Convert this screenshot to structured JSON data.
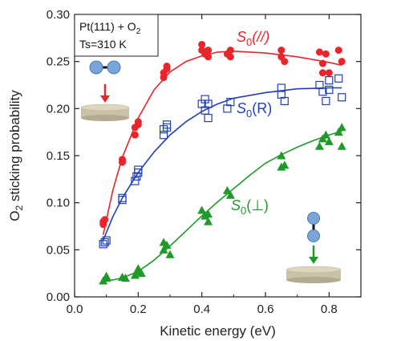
{
  "chart_data": {
    "type": "scatter",
    "xlabel": "Kinetic energy (eV)",
    "ylabel": {
      "base": "O",
      "sub": "2",
      "rest": " sticking probability"
    },
    "xlim": [
      0.0,
      0.9
    ],
    "ylim": [
      0.0,
      0.3
    ],
    "xticks": [
      "0.0",
      "0.2",
      "0.4",
      "0.6",
      "0.8"
    ],
    "xtick_values": [
      0.0,
      0.2,
      0.4,
      0.6,
      0.8
    ],
    "yticks": [
      "0.00",
      "0.05",
      "0.10",
      "0.15",
      "0.20",
      "0.25",
      "0.30"
    ],
    "ytick_values": [
      0.0,
      0.05,
      0.1,
      0.15,
      0.2,
      0.25,
      0.3
    ],
    "grid": false,
    "annotation": {
      "line1": {
        "base": "Pt(111) + O",
        "sub": "2"
      },
      "line2": "Ts=310 K"
    },
    "series": [
      {
        "label": {
          "S": "S",
          "sub": "0",
          "suffix": "(//)"
        },
        "color": "#e8252b",
        "marker": "circle",
        "points": [
          [
            0.09,
            0.077
          ],
          [
            0.09,
            0.08
          ],
          [
            0.095,
            0.082
          ],
          [
            0.15,
            0.143
          ],
          [
            0.15,
            0.146
          ],
          [
            0.19,
            0.172
          ],
          [
            0.19,
            0.18
          ],
          [
            0.2,
            0.183
          ],
          [
            0.2,
            0.186
          ],
          [
            0.28,
            0.233
          ],
          [
            0.28,
            0.238
          ],
          [
            0.29,
            0.242
          ],
          [
            0.29,
            0.245
          ],
          [
            0.4,
            0.262
          ],
          [
            0.4,
            0.268
          ],
          [
            0.41,
            0.258
          ],
          [
            0.42,
            0.255
          ],
          [
            0.42,
            0.262
          ],
          [
            0.48,
            0.258
          ],
          [
            0.49,
            0.262
          ],
          [
            0.49,
            0.255
          ],
          [
            0.65,
            0.262
          ],
          [
            0.65,
            0.255
          ],
          [
            0.66,
            0.25
          ],
          [
            0.77,
            0.26
          ],
          [
            0.78,
            0.248
          ],
          [
            0.78,
            0.238
          ],
          [
            0.79,
            0.258
          ],
          [
            0.8,
            0.238
          ],
          [
            0.83,
            0.262
          ],
          [
            0.84,
            0.25
          ]
        ],
        "fit": [
          [
            0.09,
            0.066
          ],
          [
            0.12,
            0.113
          ],
          [
            0.15,
            0.148
          ],
          [
            0.2,
            0.19
          ],
          [
            0.25,
            0.22
          ],
          [
            0.3,
            0.239
          ],
          [
            0.35,
            0.25
          ],
          [
            0.4,
            0.256
          ],
          [
            0.45,
            0.26
          ],
          [
            0.5,
            0.261
          ],
          [
            0.6,
            0.259
          ],
          [
            0.7,
            0.255
          ],
          [
            0.8,
            0.249
          ],
          [
            0.84,
            0.246
          ]
        ]
      },
      {
        "label": {
          "S": "S",
          "sub": "0",
          "suffix": "(R)"
        },
        "color": "#2040b8",
        "marker": "square-open",
        "points": [
          [
            0.09,
            0.056
          ],
          [
            0.095,
            0.058
          ],
          [
            0.1,
            0.06
          ],
          [
            0.15,
            0.103
          ],
          [
            0.15,
            0.105
          ],
          [
            0.19,
            0.123
          ],
          [
            0.195,
            0.128
          ],
          [
            0.2,
            0.132
          ],
          [
            0.2,
            0.135
          ],
          [
            0.28,
            0.172
          ],
          [
            0.28,
            0.178
          ],
          [
            0.29,
            0.18
          ],
          [
            0.29,
            0.183
          ],
          [
            0.4,
            0.205
          ],
          [
            0.41,
            0.198
          ],
          [
            0.41,
            0.21
          ],
          [
            0.42,
            0.19
          ],
          [
            0.42,
            0.205
          ],
          [
            0.48,
            0.2
          ],
          [
            0.49,
            0.207
          ],
          [
            0.65,
            0.215
          ],
          [
            0.65,
            0.222
          ],
          [
            0.66,
            0.208
          ],
          [
            0.77,
            0.225
          ],
          [
            0.78,
            0.218
          ],
          [
            0.79,
            0.208
          ],
          [
            0.8,
            0.23
          ],
          [
            0.8,
            0.22
          ],
          [
            0.83,
            0.232
          ],
          [
            0.84,
            0.212
          ]
        ],
        "fit": [
          [
            0.09,
            0.06
          ],
          [
            0.12,
            0.085
          ],
          [
            0.15,
            0.105
          ],
          [
            0.2,
            0.132
          ],
          [
            0.25,
            0.154
          ],
          [
            0.3,
            0.172
          ],
          [
            0.35,
            0.186
          ],
          [
            0.4,
            0.197
          ],
          [
            0.45,
            0.205
          ],
          [
            0.5,
            0.211
          ],
          [
            0.6,
            0.217
          ],
          [
            0.7,
            0.221
          ],
          [
            0.8,
            0.222
          ],
          [
            0.84,
            0.222
          ]
        ]
      },
      {
        "label": {
          "S": "S",
          "sub": "0",
          "suffix": "(⊥)"
        },
        "color": "#1e9a28",
        "marker": "triangle",
        "points": [
          [
            0.09,
            0.017
          ],
          [
            0.1,
            0.02
          ],
          [
            0.1,
            0.022
          ],
          [
            0.15,
            0.021
          ],
          [
            0.16,
            0.02
          ],
          [
            0.19,
            0.023
          ],
          [
            0.2,
            0.027
          ],
          [
            0.2,
            0.03
          ],
          [
            0.21,
            0.025
          ],
          [
            0.28,
            0.058
          ],
          [
            0.28,
            0.05
          ],
          [
            0.29,
            0.055
          ],
          [
            0.3,
            0.045
          ],
          [
            0.4,
            0.092
          ],
          [
            0.41,
            0.086
          ],
          [
            0.42,
            0.08
          ],
          [
            0.42,
            0.088
          ],
          [
            0.48,
            0.113
          ],
          [
            0.49,
            0.108
          ],
          [
            0.65,
            0.15
          ],
          [
            0.65,
            0.138
          ],
          [
            0.66,
            0.14
          ],
          [
            0.77,
            0.16
          ],
          [
            0.78,
            0.168
          ],
          [
            0.79,
            0.172
          ],
          [
            0.8,
            0.165
          ],
          [
            0.83,
            0.175
          ],
          [
            0.84,
            0.18
          ],
          [
            0.84,
            0.16
          ]
        ],
        "fit": [
          [
            0.09,
            0.016
          ],
          [
            0.15,
            0.02
          ],
          [
            0.2,
            0.027
          ],
          [
            0.25,
            0.039
          ],
          [
            0.3,
            0.054
          ],
          [
            0.35,
            0.07
          ],
          [
            0.4,
            0.086
          ],
          [
            0.45,
            0.101
          ],
          [
            0.5,
            0.115
          ],
          [
            0.55,
            0.129
          ],
          [
            0.6,
            0.142
          ],
          [
            0.65,
            0.151
          ],
          [
            0.7,
            0.159
          ],
          [
            0.75,
            0.166
          ],
          [
            0.8,
            0.172
          ],
          [
            0.84,
            0.176
          ]
        ]
      }
    ]
  }
}
